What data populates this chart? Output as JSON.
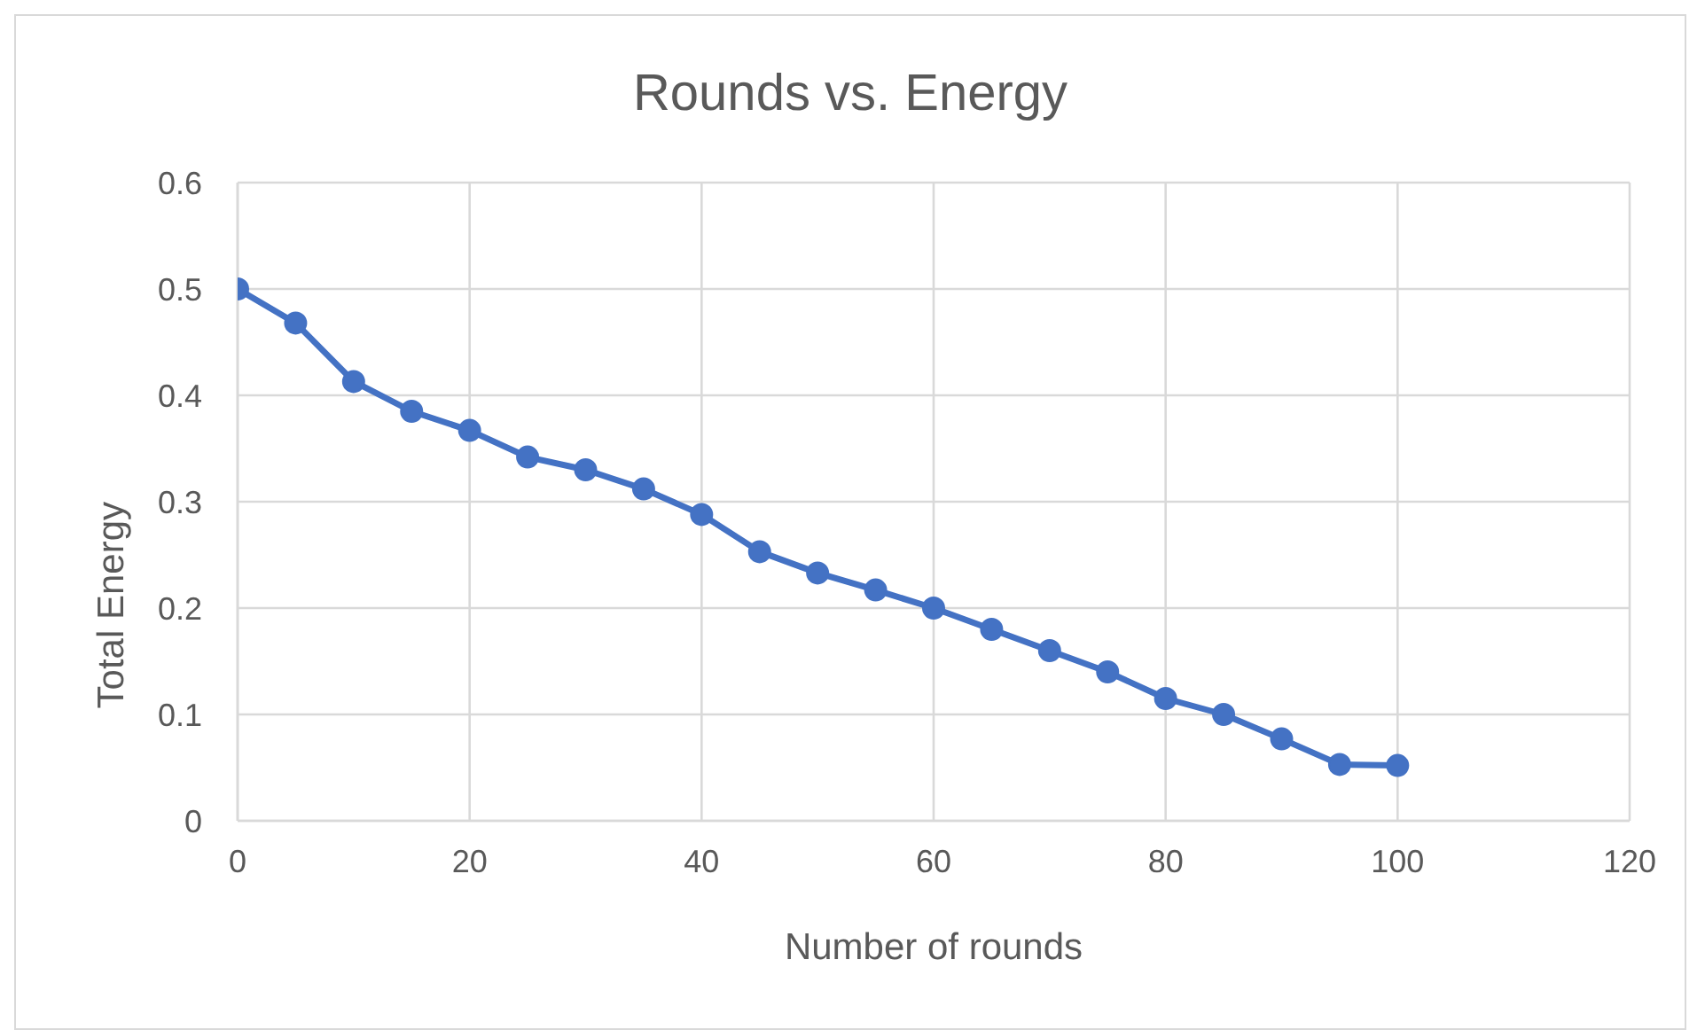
{
  "chart_data": {
    "type": "line",
    "title": "Rounds vs. Energy",
    "xlabel": "Number of rounds",
    "ylabel": "Total Energy",
    "x": [
      0,
      5,
      10,
      15,
      20,
      25,
      30,
      35,
      40,
      45,
      50,
      55,
      60,
      65,
      70,
      75,
      80,
      85,
      90,
      95,
      100
    ],
    "series": [
      {
        "color": "#4472c4",
        "values": [
          0.5,
          0.468,
          0.413,
          0.385,
          0.367,
          0.342,
          0.33,
          0.312,
          0.288,
          0.253,
          0.233,
          0.217,
          0.2,
          0.18,
          0.16,
          0.14,
          0.115,
          0.1,
          0.077,
          0.053,
          0.052
        ]
      }
    ],
    "xlim": [
      0,
      120
    ],
    "xticks": [
      0,
      20,
      40,
      60,
      80,
      100,
      120
    ],
    "ylim": [
      0,
      0.6
    ],
    "yticks": [
      0,
      0.1,
      0.2,
      0.3,
      0.4,
      0.5,
      0.6
    ],
    "grid": true,
    "marker": "circle",
    "line_style": "solid",
    "legend": false
  }
}
